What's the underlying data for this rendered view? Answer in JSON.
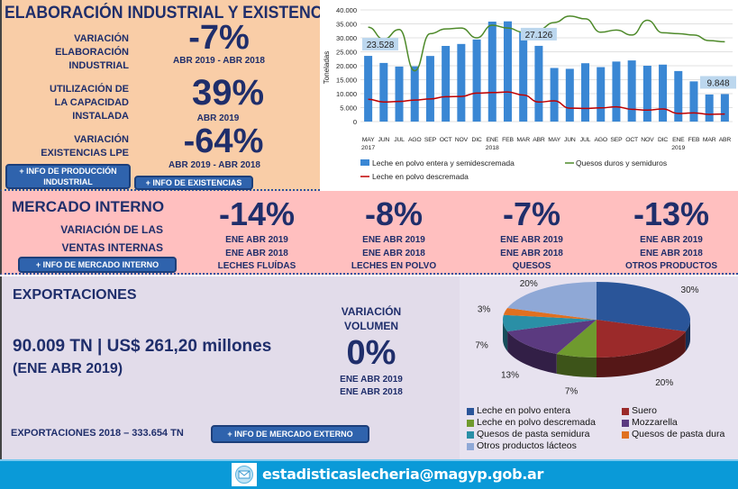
{
  "industrial": {
    "title": "ELABORACIÓN INDUSTRIAL Y EXISTENCIAS",
    "items": [
      {
        "label": [
          "VARIACIÓN",
          "ELABORACIÓN",
          "INDUSTRIAL"
        ],
        "value": "-7%",
        "period": "ABR 2019 -  ABR 2018"
      },
      {
        "label": [
          "UTILIZACIÓN DE",
          "LA CAPACIDAD",
          "INSTALADA"
        ],
        "value": "39%",
        "period": "ABR 2019"
      },
      {
        "label": [
          "VARIACIÓN",
          "EXISTENCIAS LPE"
        ],
        "value": "-64%",
        "period": "ABR 2019 -  ABR 2018"
      }
    ],
    "btn_produccion": [
      "+ INFO DE PRODUCCIÓN",
      "INDUSTRIAL"
    ],
    "btn_existencias": "+ INFO DE EXISTENCIAS"
  },
  "chart_data": {
    "type": "bar+line",
    "ylabel": "Toneladas",
    "ylim": [
      0,
      40000
    ],
    "yticks": [
      "0",
      "5.000",
      "10.000",
      "15.000",
      "20.000",
      "25.000",
      "30.000",
      "35.000",
      "40.000"
    ],
    "categories": [
      "MAY",
      "JUN",
      "JUL",
      "AGO",
      "SEP",
      "OCT",
      "NOV",
      "DIC",
      "ENE",
      "FEB",
      "MAR",
      "ABR",
      "MAY",
      "JUN",
      "JUL",
      "AGO",
      "SEP",
      "OCT",
      "NOV",
      "DIC",
      "ENE",
      "FEB",
      "MAR",
      "ABR"
    ],
    "year_labels": {
      "0": "2017",
      "8": "2018",
      "20": "2019"
    },
    "series": [
      {
        "name": "Leche en polvo entera y semidescremada",
        "type": "bar",
        "color": "#3a87d4",
        "values": [
          23528,
          21000,
          19700,
          19800,
          23500,
          27100,
          27800,
          29400,
          35800,
          35900,
          32000,
          27126,
          19200,
          18900,
          20900,
          19500,
          21500,
          21900,
          20000,
          20400,
          18100,
          14400,
          9700,
          9848
        ]
      },
      {
        "name": "Quesos duros y semiduros",
        "type": "line",
        "color": "#4e8a2a",
        "values": [
          33800,
          29500,
          33000,
          18200,
          31500,
          33200,
          33500,
          30000,
          34500,
          33500,
          32000,
          33000,
          35500,
          37800,
          36800,
          32000,
          32800,
          31000,
          36300,
          31800,
          31500,
          31000,
          29000,
          28600
        ]
      },
      {
        "name": "Leche en polvo descremada",
        "type": "line",
        "color": "#c00000",
        "values": [
          8000,
          7000,
          7200,
          7700,
          8100,
          8900,
          9000,
          10200,
          10400,
          10600,
          9500,
          7000,
          7400,
          4800,
          4700,
          4900,
          5300,
          4400,
          4100,
          4500,
          2900,
          3100,
          2600,
          2700
        ]
      }
    ],
    "data_labels": [
      {
        "index": 0,
        "text": "23.528"
      },
      {
        "index": 11,
        "text": "27.126"
      },
      {
        "index": 23,
        "text": "9.848"
      }
    ]
  },
  "mercado": {
    "title": "MERCADO INTERNO",
    "subtitle": [
      "VARIACIÓN DE LAS",
      "VENTAS INTERNAS"
    ],
    "btn": "+ INFO DE MERCADO INTERNO",
    "items": [
      {
        "value": "-14%",
        "p1": "ENE ABR 2019",
        "p2": "ENE ABR 2018",
        "product": "LECHES FLUÍDAS"
      },
      {
        "value": "-8%",
        "p1": "ENE ABR 2019",
        "p2": "ENE ABR 2018",
        "product": "LECHES EN POLVO"
      },
      {
        "value": "-7%",
        "p1": "ENE ABR 2019",
        "p2": "ENE ABR 2018",
        "product": "QUESOS"
      },
      {
        "value": "-13%",
        "p1": "ENE ABR 2019",
        "p2": "ENE ABR 2018",
        "product": "OTROS PRODUCTOS"
      }
    ]
  },
  "export": {
    "title": "EXPORTACIONES",
    "main": "90.009 TN | US$ 261,20 millones",
    "period": "(ENE ABR 2019)",
    "var_label": [
      "VARIACIÓN",
      "VOLUMEN"
    ],
    "var_value": "0%",
    "p1": "ENE ABR 2019",
    "p2": "ENE ABR 2018",
    "total": "EXPORTACIONES 2018 – 333.654 TN",
    "btn": "+ INFO DE MERCADO EXTERNO"
  },
  "pie_data": {
    "type": "pie",
    "slices": [
      {
        "name": "Leche en polvo entera",
        "value": 30,
        "label": "30%",
        "color": "#2a5599"
      },
      {
        "name": "Suero",
        "value": 20,
        "label": "20%",
        "color": "#9b2a2a"
      },
      {
        "name": "Leche en polvo descremada",
        "value": 7,
        "label": "7%",
        "color": "#6f9a2e"
      },
      {
        "name": "Mozzarella",
        "value": 13,
        "label": "13%",
        "color": "#5b3a80"
      },
      {
        "name": "Quesos de pasta semidura",
        "value": 7,
        "label": "7%",
        "color": "#2a8fa6"
      },
      {
        "name": "Quesos de pasta dura",
        "value": 3,
        "label": "3%",
        "color": "#e07020"
      },
      {
        "name": "Otros productos lácteos",
        "value": 20,
        "label": "20%",
        "color": "#8fa8d6"
      }
    ]
  },
  "footer": {
    "email": "estadisticaslecheria@magyp.gob.ar",
    "icon": "mail-icon"
  }
}
